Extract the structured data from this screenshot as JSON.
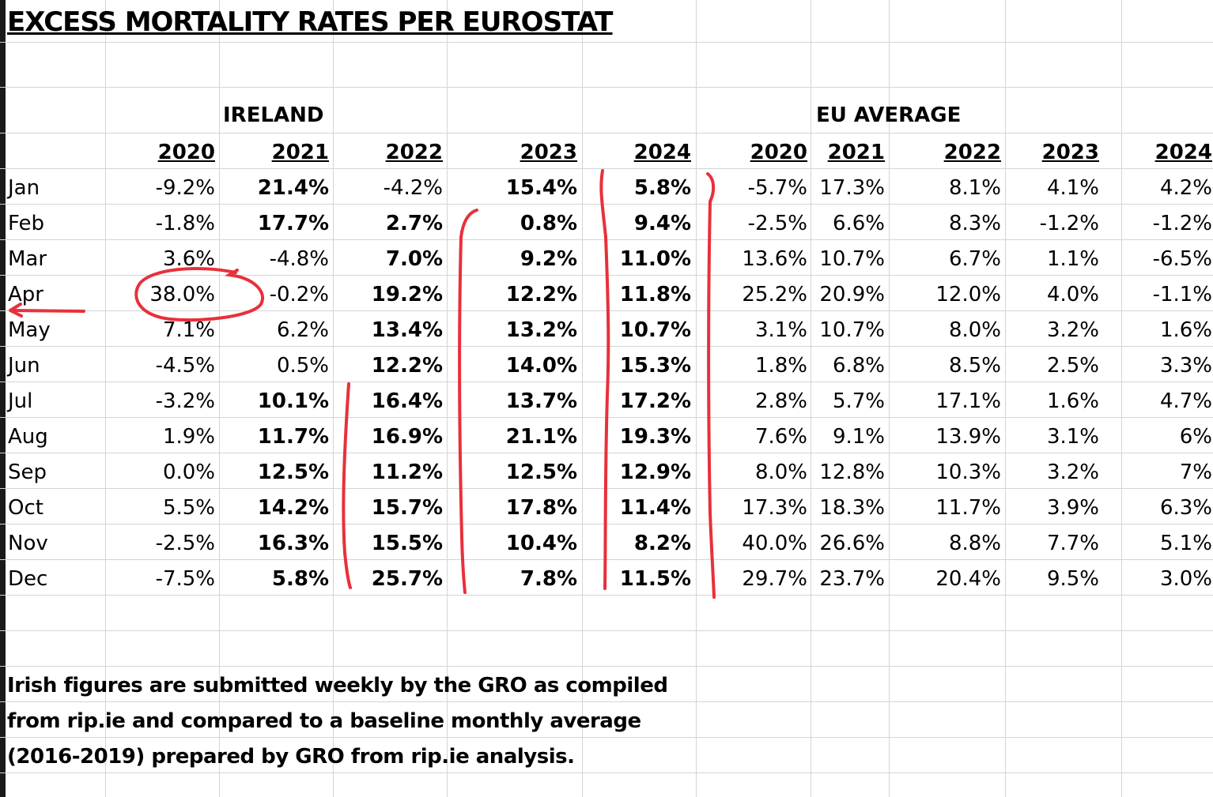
{
  "title": "EXCESS MORTALITY RATES PER EUROSTAT",
  "groups": {
    "ireland": "IRELAND",
    "eu": "EU AVERAGE"
  },
  "years": {
    "ireland": [
      "2020",
      "2021",
      "2022",
      "2023",
      "2024"
    ],
    "eu": [
      "2020",
      "2021",
      "2022",
      "2023",
      "2024"
    ]
  },
  "rows": [
    {
      "month": "Jan",
      "ireland": [
        "-9.2%",
        "21.4%",
        "-4.2%",
        "15.4%",
        "5.8%"
      ],
      "eu": [
        "-5.7%",
        "17.3%",
        "8.1%",
        "4.1%",
        "4.2%"
      ]
    },
    {
      "month": "Feb",
      "ireland": [
        "-1.8%",
        "17.7%",
        "2.7%",
        "0.8%",
        "9.4%"
      ],
      "eu": [
        "-2.5%",
        "6.6%",
        "8.3%",
        "-1.2%",
        "-1.2%"
      ]
    },
    {
      "month": "Mar",
      "ireland": [
        "3.6%",
        "-4.8%",
        "7.0%",
        "9.2%",
        "11.0%"
      ],
      "eu": [
        "13.6%",
        "10.7%",
        "6.7%",
        "1.1%",
        "-6.5%"
      ]
    },
    {
      "month": "Apr",
      "ireland": [
        "38.0%",
        "-0.2%",
        "19.2%",
        "12.2%",
        "11.8%"
      ],
      "eu": [
        "25.2%",
        "20.9%",
        "12.0%",
        "4.0%",
        "-1.1%"
      ]
    },
    {
      "month": "May",
      "ireland": [
        "7.1%",
        "6.2%",
        "13.4%",
        "13.2%",
        "10.7%"
      ],
      "eu": [
        "3.1%",
        "10.7%",
        "8.0%",
        "3.2%",
        "1.6%"
      ]
    },
    {
      "month": "Jun",
      "ireland": [
        "-4.5%",
        "0.5%",
        "12.2%",
        "14.0%",
        "15.3%"
      ],
      "eu": [
        "1.8%",
        "6.8%",
        "8.5%",
        "2.5%",
        "3.3%"
      ]
    },
    {
      "month": "Jul",
      "ireland": [
        "-3.2%",
        "10.1%",
        "16.4%",
        "13.7%",
        "17.2%"
      ],
      "eu": [
        "2.8%",
        "5.7%",
        "17.1%",
        "1.6%",
        "4.7%"
      ]
    },
    {
      "month": "Aug",
      "ireland": [
        "1.9%",
        "11.7%",
        "16.9%",
        "21.1%",
        "19.3%"
      ],
      "eu": [
        "7.6%",
        "9.1%",
        "13.9%",
        "3.1%",
        "6%"
      ]
    },
    {
      "month": "Sep",
      "ireland": [
        "0.0%",
        "12.5%",
        "11.2%",
        "12.5%",
        "12.9%"
      ],
      "eu": [
        "8.0%",
        "12.8%",
        "10.3%",
        "3.2%",
        "7%"
      ]
    },
    {
      "month": "Oct",
      "ireland": [
        "5.5%",
        "14.2%",
        "15.7%",
        "17.8%",
        "11.4%"
      ],
      "eu": [
        "17.3%",
        "18.3%",
        "11.7%",
        "3.9%",
        "6.3%"
      ]
    },
    {
      "month": "Nov",
      "ireland": [
        "-2.5%",
        "16.3%",
        "15.5%",
        "10.4%",
        "8.2%"
      ],
      "eu": [
        "40.0%",
        "26.6%",
        "8.8%",
        "7.7%",
        "5.1%"
      ]
    },
    {
      "month": "Dec",
      "ireland": [
        "-7.5%",
        "5.8%",
        "25.7%",
        "7.8%",
        "11.5%"
      ],
      "eu": [
        "29.7%",
        "23.7%",
        "20.4%",
        "9.5%",
        "3.0%"
      ]
    }
  ],
  "note": [
    "Irish figures are submitted weekly by the GRO as compiled",
    "from rip.ie and compared to a baseline monthly average",
    "(2016-2019) prepared by GRO from rip.ie analysis."
  ],
  "colors": {
    "annotation": "#e8303a",
    "gridline": "#d4d4d4"
  }
}
